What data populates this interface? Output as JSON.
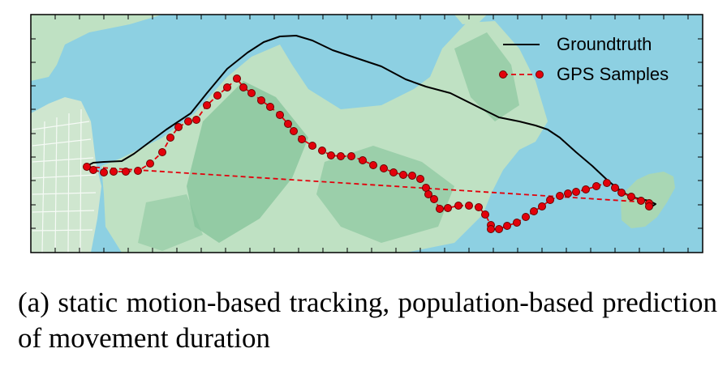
{
  "map": {
    "legend": {
      "groundtruth_label": "Groundtruth",
      "gps_label": "GPS Samples"
    },
    "colors": {
      "water": "#8dd0e2",
      "land": "#bfe1c3",
      "hills": "#84c39a",
      "groundtruth": "#000000",
      "gps": "#e3000b"
    }
  },
  "caption": {
    "text": "(a) static motion-based tracking, population-based prediction of movement duration"
  }
}
